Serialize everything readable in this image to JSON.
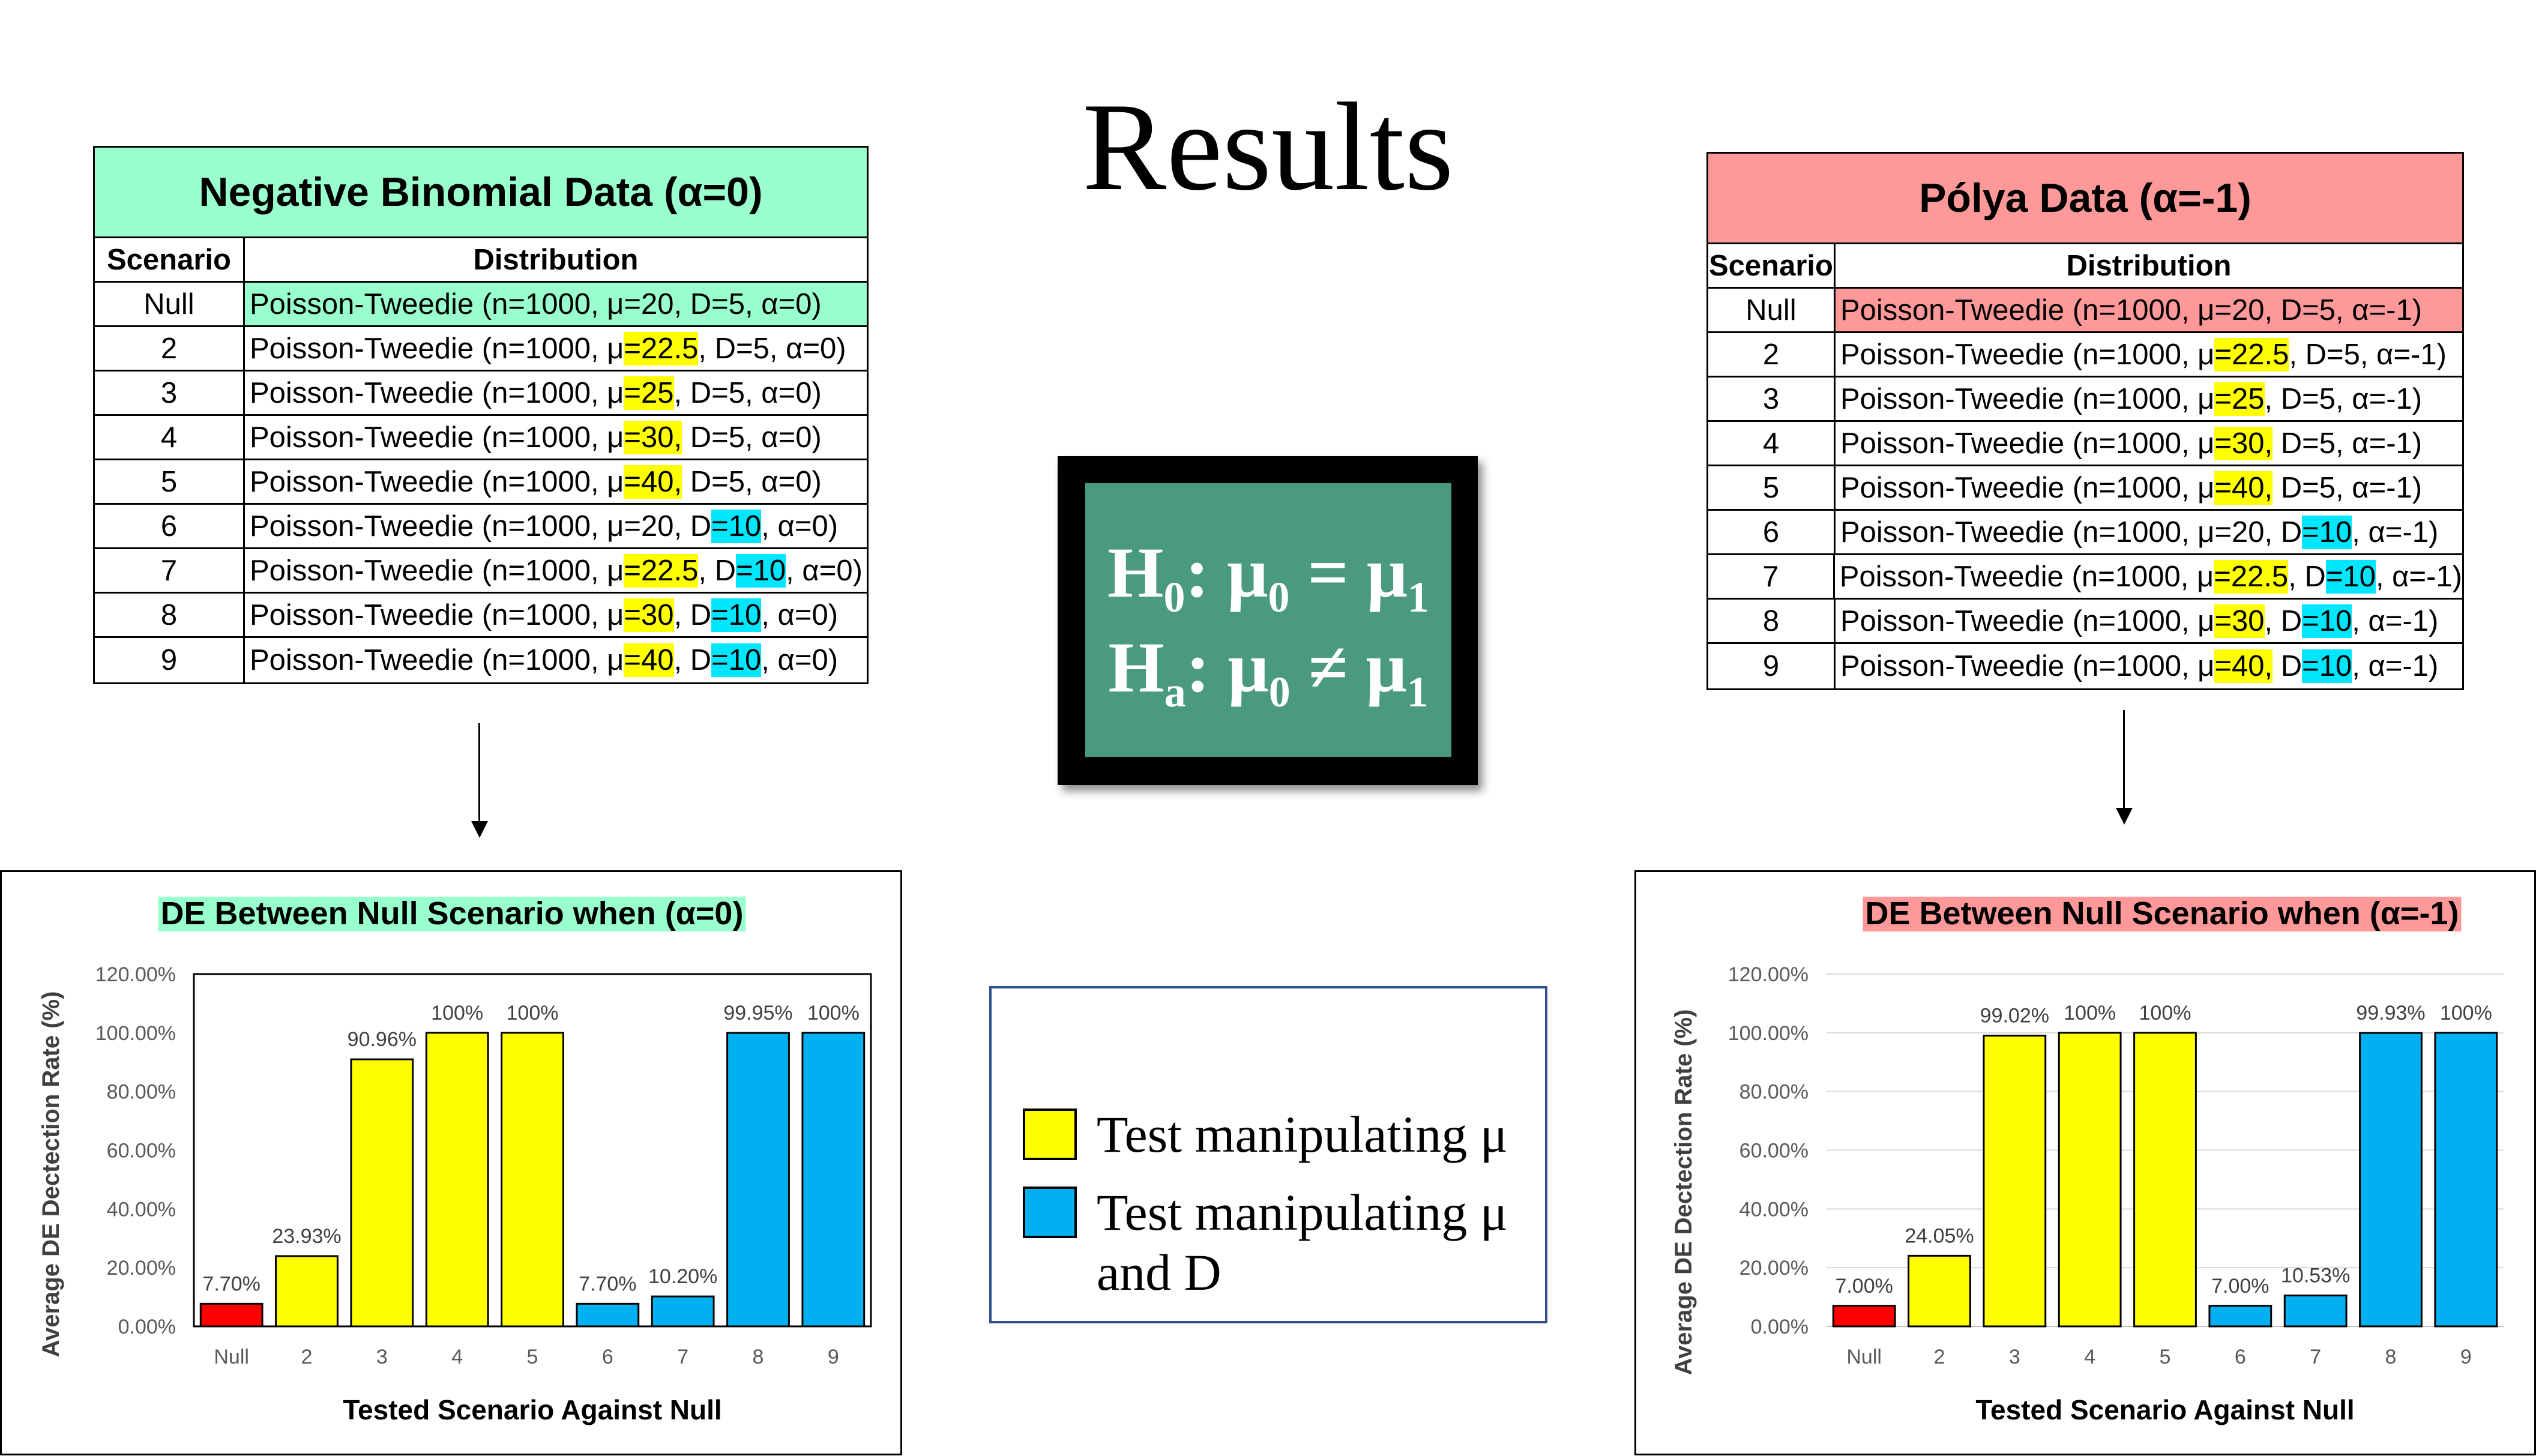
{
  "page_title": "Results",
  "left_table": {
    "title": "Negative Binomial Data (α=0)",
    "col_scenario": "Scenario",
    "col_distribution": "Distribution",
    "rows": [
      {
        "scenario": "Null",
        "segments": [
          {
            "t": "Poisson-Tweedie (n=1000, μ=20, D=5, α=0)"
          }
        ]
      },
      {
        "scenario": "2",
        "segments": [
          {
            "t": "Poisson-Tweedie (n=1000, μ"
          },
          {
            "t": "=22.5",
            "h": "y"
          },
          {
            "t": ", D=5, α=0)"
          }
        ]
      },
      {
        "scenario": "3",
        "segments": [
          {
            "t": "Poisson-Tweedie (n=1000, μ"
          },
          {
            "t": "=25",
            "h": "y"
          },
          {
            "t": ", D=5, α=0)"
          }
        ]
      },
      {
        "scenario": "4",
        "segments": [
          {
            "t": "Poisson-Tweedie (n=1000, μ"
          },
          {
            "t": "=30,",
            "h": "y"
          },
          {
            "t": " D=5, α=0)"
          }
        ]
      },
      {
        "scenario": "5",
        "segments": [
          {
            "t": "Poisson-Tweedie (n=1000, μ"
          },
          {
            "t": "=40,",
            "h": "y"
          },
          {
            "t": " D=5, α=0)"
          }
        ]
      },
      {
        "scenario": "6",
        "segments": [
          {
            "t": "Poisson-Tweedie (n=1000, μ=20, D"
          },
          {
            "t": "=10",
            "h": "c"
          },
          {
            "t": ", α=0)"
          }
        ]
      },
      {
        "scenario": "7",
        "segments": [
          {
            "t": "Poisson-Tweedie (n=1000, μ"
          },
          {
            "t": "=22.5",
            "h": "y"
          },
          {
            "t": ", D"
          },
          {
            "t": "=10",
            "h": "c"
          },
          {
            "t": ", α=0)"
          }
        ]
      },
      {
        "scenario": "8",
        "segments": [
          {
            "t": "Poisson-Tweedie (n=1000, μ"
          },
          {
            "t": "=30",
            "h": "y"
          },
          {
            "t": ", D"
          },
          {
            "t": "=10",
            "h": "c"
          },
          {
            "t": ", α=0)"
          }
        ]
      },
      {
        "scenario": "9",
        "segments": [
          {
            "t": "Poisson-Tweedie (n=1000, μ"
          },
          {
            "t": "=40",
            "h": "y"
          },
          {
            "t": ", D"
          },
          {
            "t": "=10",
            "h": "c"
          },
          {
            "t": ", α=0)"
          }
        ]
      }
    ]
  },
  "right_table": {
    "title": "Pólya Data (α=-1)",
    "col_scenario": "Scenario",
    "col_distribution": "Distribution",
    "rows": [
      {
        "scenario": "Null",
        "segments": [
          {
            "t": "Poisson-Tweedie (n=1000, μ=20, D=5, α=-1)"
          }
        ]
      },
      {
        "scenario": "2",
        "segments": [
          {
            "t": "Poisson-Tweedie (n=1000, μ"
          },
          {
            "t": "=22.5",
            "h": "y"
          },
          {
            "t": ", D=5, α=-1)"
          }
        ]
      },
      {
        "scenario": "3",
        "segments": [
          {
            "t": "Poisson-Tweedie (n=1000, μ"
          },
          {
            "t": "=25",
            "h": "y"
          },
          {
            "t": ", D=5, α=-1)"
          }
        ]
      },
      {
        "scenario": "4",
        "segments": [
          {
            "t": "Poisson-Tweedie (n=1000, μ"
          },
          {
            "t": "=30,",
            "h": "y"
          },
          {
            "t": " D=5, α=-1)"
          }
        ]
      },
      {
        "scenario": "5",
        "segments": [
          {
            "t": "Poisson-Tweedie (n=1000, μ"
          },
          {
            "t": "=40,",
            "h": "y"
          },
          {
            "t": " D=5, α=-1)"
          }
        ]
      },
      {
        "scenario": "6",
        "segments": [
          {
            "t": "Poisson-Tweedie (n=1000, μ=20, D"
          },
          {
            "t": "=10",
            "h": "c"
          },
          {
            "t": ", α=-1)"
          }
        ]
      },
      {
        "scenario": "7",
        "segments": [
          {
            "t": "Poisson-Tweedie (n=1000, μ"
          },
          {
            "t": "=22.5",
            "h": "y"
          },
          {
            "t": ", D"
          },
          {
            "t": "=10",
            "h": "c"
          },
          {
            "t": ", α=-1)"
          }
        ]
      },
      {
        "scenario": "8",
        "segments": [
          {
            "t": "Poisson-Tweedie (n=1000, μ"
          },
          {
            "t": "=30",
            "h": "y"
          },
          {
            "t": ", D"
          },
          {
            "t": "=10",
            "h": "c"
          },
          {
            "t": ", α=-1)"
          }
        ]
      },
      {
        "scenario": "9",
        "segments": [
          {
            "t": "Poisson-Tweedie (n=1000, μ"
          },
          {
            "t": "=40,",
            "h": "y"
          },
          {
            "t": " D"
          },
          {
            "t": "=10",
            "h": "c"
          },
          {
            "t": ", α=-1)"
          }
        ]
      }
    ]
  },
  "hypothesis": {
    "h0": {
      "H": "H",
      "sub": "0",
      "rest": ": μ",
      "sub2": "0",
      "rel": " = μ",
      "sub3": "1"
    },
    "ha": {
      "H": "H",
      "sub": "a",
      "rest": ": μ",
      "sub2": "0",
      "rel": " ≠ μ",
      "sub3": "1"
    }
  },
  "legend": {
    "items": [
      {
        "label_lines": [
          "Test manipulating μ"
        ],
        "color": "#ffff00"
      },
      {
        "label_lines": [
          "Test manipulating μ",
          "and D"
        ],
        "color": "#00b0f0"
      }
    ]
  },
  "colors": {
    "null": "#ff0000",
    "mu": "#ffff00",
    "mu_and_d": "#00b0f0"
  },
  "chart_data": [
    {
      "type": "bar",
      "title": "DE Between Null Scenario when (α=0)",
      "title_highlight": "#99ffcc",
      "xlabel": "Tested Scenario Against Null",
      "ylabel": "Average DE Dectection Rate (%)",
      "ylim": [
        0,
        120
      ],
      "yticks": [
        "0.00%",
        "20.00%",
        "40.00%",
        "60.00%",
        "80.00%",
        "100.00%",
        "120.00%"
      ],
      "categories": [
        "Null",
        "2",
        "3",
        "4",
        "5",
        "6",
        "7",
        "8",
        "9"
      ],
      "values": [
        7.7,
        23.93,
        90.96,
        100,
        100,
        7.7,
        10.2,
        99.95,
        100
      ],
      "data_labels": [
        "7.70%",
        "23.93%",
        "90.96%",
        "100%",
        "100%",
        "7.70%",
        "10.20%",
        "99.95%",
        "100%"
      ],
      "bar_colors": [
        "#ff0000",
        "#ffff00",
        "#ffff00",
        "#ffff00",
        "#ffff00",
        "#00b0f0",
        "#00b0f0",
        "#00b0f0",
        "#00b0f0"
      ],
      "grid": false,
      "legend": "none"
    },
    {
      "type": "bar",
      "title": "DE Between Null Scenario when (α=-1)",
      "title_highlight": "#ff9999",
      "xlabel": "Tested Scenario Against Null",
      "ylabel": "Average DE Dectection Rate (%)",
      "ylim": [
        0,
        120
      ],
      "yticks": [
        "0.00%",
        "20.00%",
        "40.00%",
        "60.00%",
        "80.00%",
        "100.00%",
        "120.00%"
      ],
      "categories": [
        "Null",
        "2",
        "3",
        "4",
        "5",
        "6",
        "7",
        "8",
        "9"
      ],
      "values": [
        7.0,
        24.05,
        99.02,
        100,
        100,
        7.0,
        10.53,
        99.93,
        100
      ],
      "data_labels": [
        "7.00%",
        "24.05%",
        "99.02%",
        "100%",
        "100%",
        "7.00%",
        "10.53%",
        "99.93%",
        "100%"
      ],
      "bar_colors": [
        "#ff0000",
        "#ffff00",
        "#ffff00",
        "#ffff00",
        "#ffff00",
        "#00b0f0",
        "#00b0f0",
        "#00b0f0",
        "#00b0f0"
      ],
      "grid": true,
      "legend": "none"
    }
  ]
}
